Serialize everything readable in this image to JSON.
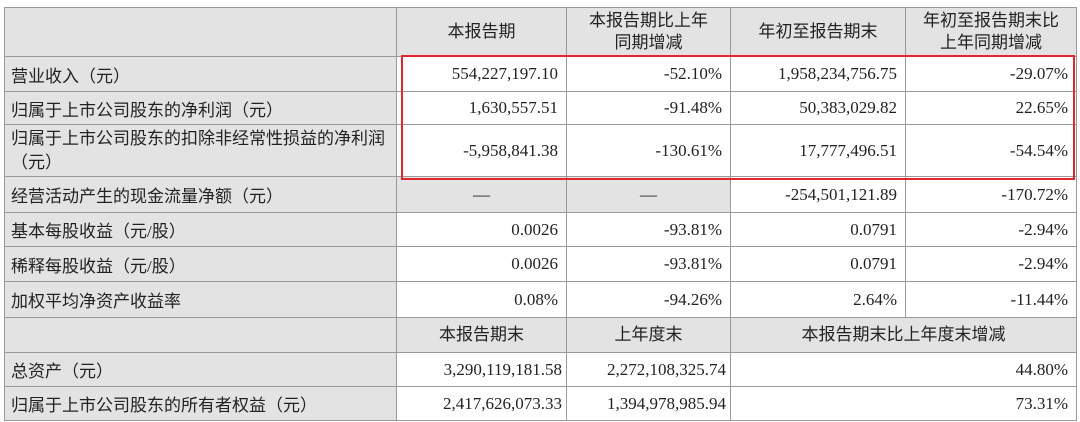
{
  "header": [
    "",
    "本报告期",
    "本报告期比上年同期增减",
    "年初至报告期末",
    "年初至报告期末比上年同期增减"
  ],
  "rows": [
    {
      "label": "营业收入（元）",
      "values": [
        "554,227,197.10",
        "-52.10%",
        "1,958,234,756.75",
        "-29.07%"
      ]
    },
    {
      "label": "归属于上市公司股东的净利润（元）",
      "values": [
        "1,630,557.51",
        "-91.48%",
        "50,383,029.82",
        "22.65%"
      ]
    },
    {
      "label": "归属于上市公司股东的扣除非经常性损益的净利润（元）",
      "values": [
        "-5,958,841.38",
        "-130.61%",
        "17,777,496.51",
        "-54.54%"
      ]
    },
    {
      "label": "经营活动产生的现金流量净额（元）",
      "values": [
        "—",
        "—",
        "-254,501,121.89",
        "-170.72%"
      ]
    },
    {
      "label": "基本每股收益（元/股）",
      "values": [
        "0.0026",
        "-93.81%",
        "0.0791",
        "-2.94%"
      ]
    },
    {
      "label": "稀释每股收益（元/股）",
      "values": [
        "0.0026",
        "-93.81%",
        "0.0791",
        "-2.94%"
      ]
    },
    {
      "label": "加权平均净资产收益率",
      "values": [
        "0.08%",
        "-94.26%",
        "2.64%",
        "-11.44%"
      ]
    }
  ],
  "header2": [
    "",
    "本报告期末",
    "上年度末",
    "本报告期末比上年度末增减"
  ],
  "rows2": [
    {
      "label": "总资产（元）",
      "values": [
        "3,290,119,181.58",
        "2,272,108,325.74",
        "44.80%"
      ]
    },
    {
      "label": "归属于上市公司股东的所有者权益（元）",
      "values": [
        "2,417,626,073.33",
        "1,394,978,985.94",
        "73.31%"
      ]
    }
  ],
  "colors": {
    "highlight_border": "#e0282e",
    "header_bg": "#e3e3e3"
  }
}
